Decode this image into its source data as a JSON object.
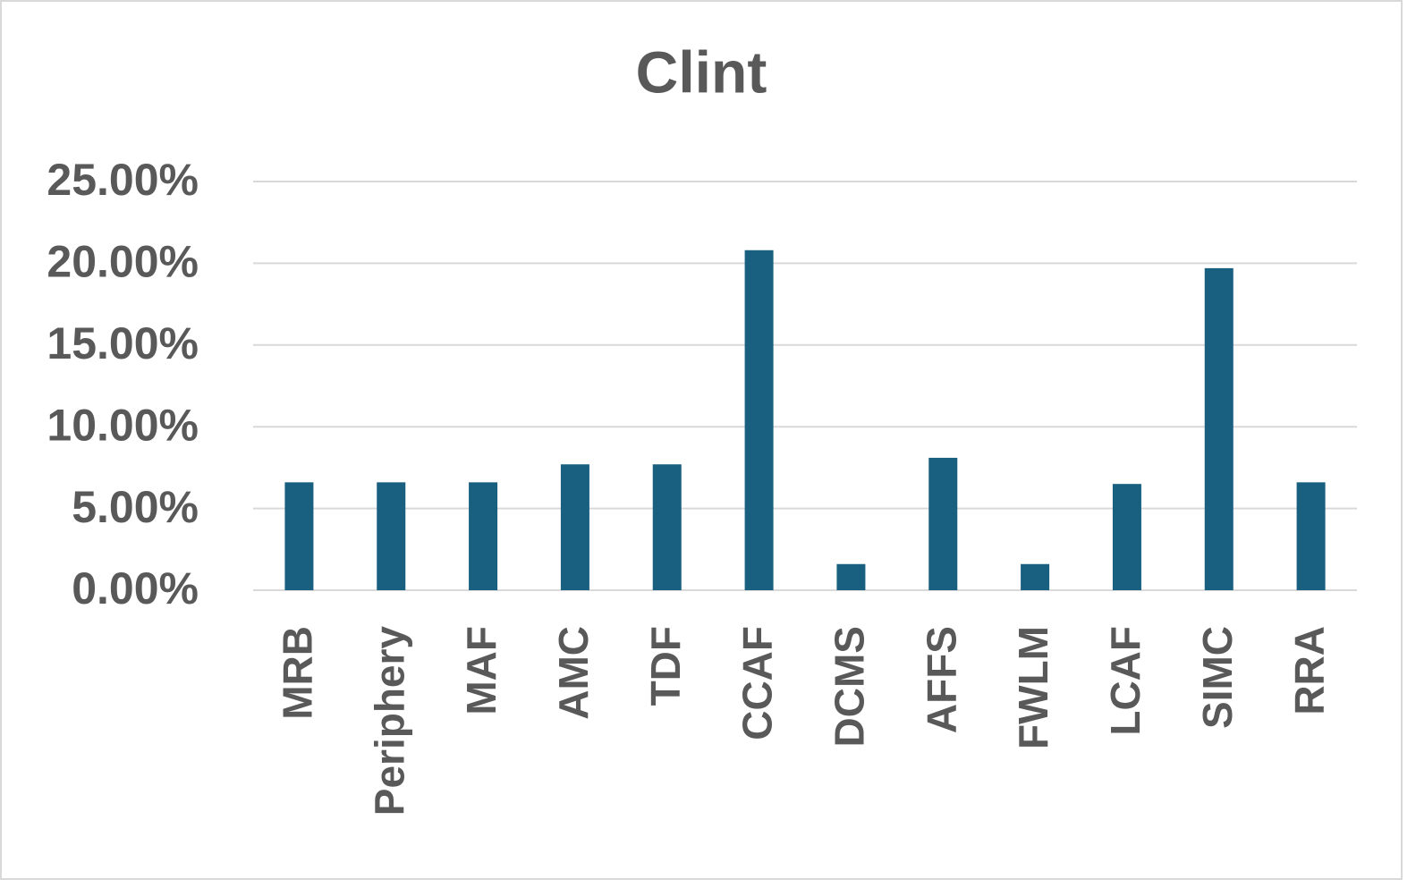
{
  "chart_data": {
    "type": "bar",
    "title": "Clint",
    "categories": [
      "MRB",
      "Periphery",
      "MAF",
      "AMC",
      "TDF",
      "CCAF",
      "DCMS",
      "AFFS",
      "FWLM",
      "LCAF",
      "SIMC",
      "RRA"
    ],
    "values": [
      6.6,
      6.6,
      6.6,
      7.7,
      7.7,
      20.8,
      1.6,
      8.1,
      1.6,
      6.5,
      19.7,
      6.6
    ],
    "color": "#185f80",
    "ylim": [
      0,
      25
    ],
    "yticks": [
      {
        "value": 0,
        "label": "0.00%"
      },
      {
        "value": 5,
        "label": "5.00%"
      },
      {
        "value": 10,
        "label": "10.00%"
      },
      {
        "value": 15,
        "label": "15.00%"
      },
      {
        "value": 20,
        "label": "20.00%"
      },
      {
        "value": 25,
        "label": "25.00%"
      }
    ],
    "grid": true
  }
}
